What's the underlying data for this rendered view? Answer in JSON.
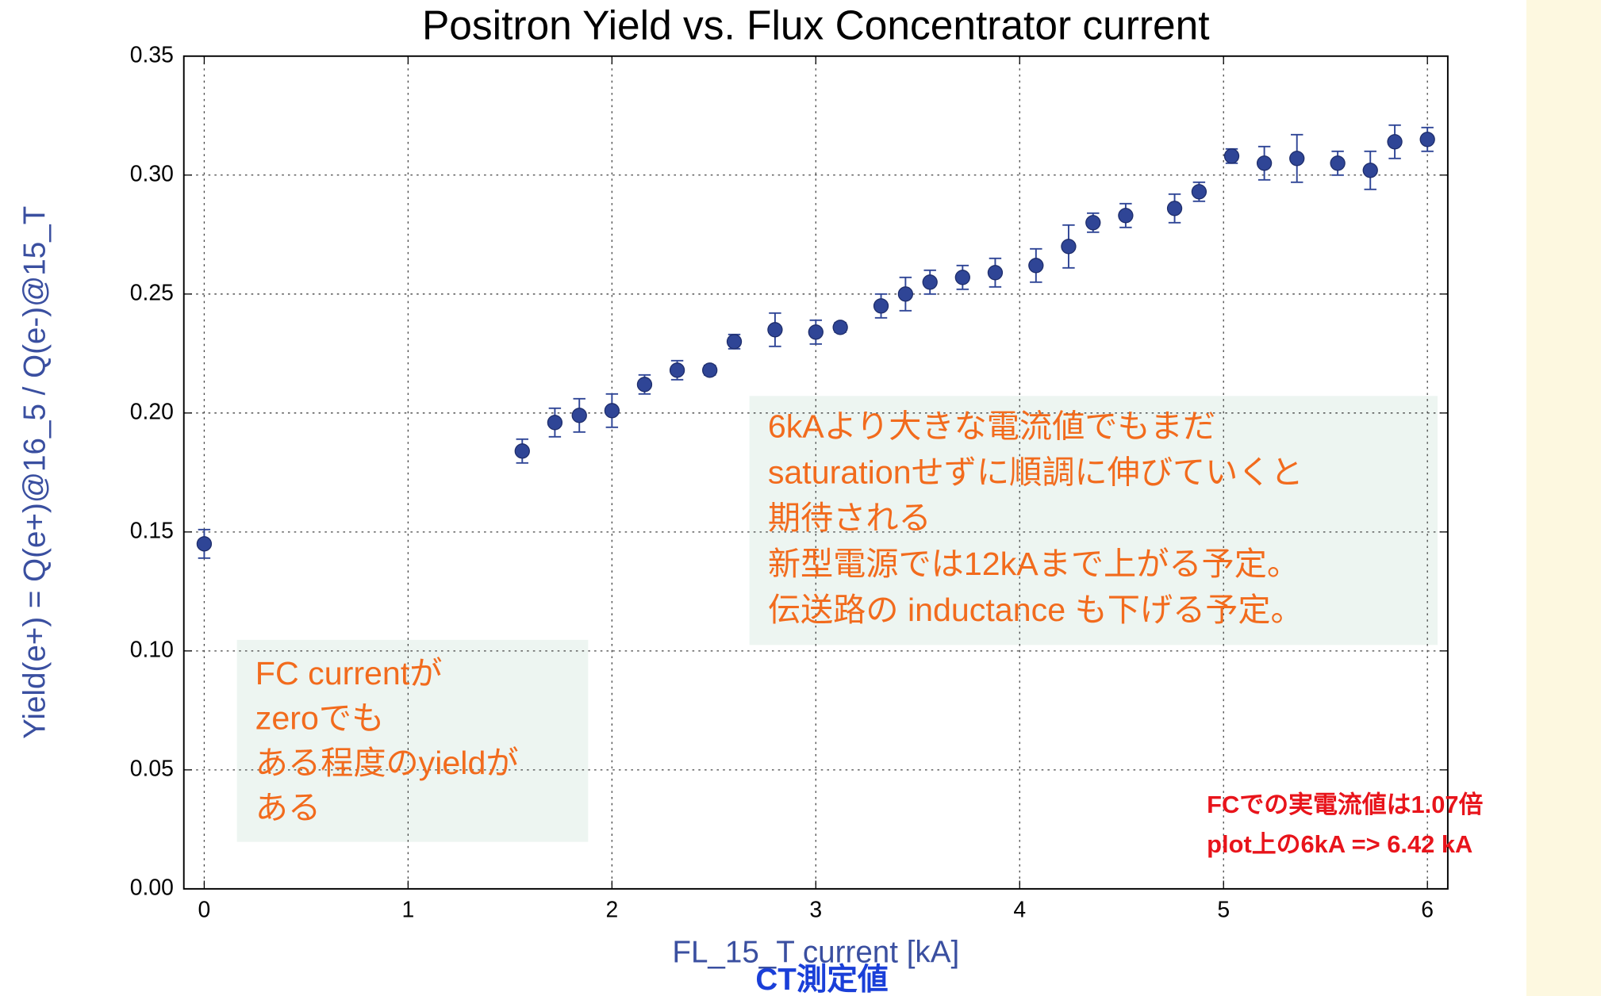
{
  "chart_data": {
    "type": "scatter",
    "title": "Positron Yield vs. Flux Concentrator current",
    "x_label": "FL_15_T current [kA]",
    "y_label": "Yield(e+) = Q(e+)@16_5 / Q(e-)@15_T",
    "x": [
      0,
      1.56,
      1.72,
      1.84,
      2.0,
      2.16,
      2.32,
      2.48,
      2.6,
      2.8,
      3.0,
      3.12,
      3.32,
      3.44,
      3.56,
      3.72,
      3.88,
      4.08,
      4.24,
      4.36,
      4.52,
      4.76,
      4.88,
      5.04,
      5.2,
      5.36,
      5.56,
      5.72,
      5.84,
      6.0
    ],
    "values": [
      0.145,
      0.184,
      0.196,
      0.199,
      0.201,
      0.212,
      0.218,
      0.218,
      0.23,
      0.235,
      0.234,
      0.236,
      0.245,
      0.25,
      0.255,
      0.257,
      0.259,
      0.262,
      0.27,
      0.28,
      0.283,
      0.286,
      0.293,
      0.308,
      0.305,
      0.307,
      0.305,
      0.302,
      0.314,
      0.315
    ],
    "errors": [
      0.006,
      0.005,
      0.006,
      0.007,
      0.007,
      0.004,
      0.004,
      0.002,
      0.003,
      0.007,
      0.005,
      0.002,
      0.005,
      0.007,
      0.005,
      0.005,
      0.006,
      0.007,
      0.009,
      0.004,
      0.005,
      0.006,
      0.004,
      0.003,
      0.007,
      0.01,
      0.005,
      0.008,
      0.007,
      0.005
    ],
    "color": "#2f4596",
    "xlim": [
      -0.1,
      6.1
    ],
    "ylim": [
      0,
      0.35
    ],
    "xticks": [
      0,
      1,
      2,
      3,
      4,
      5,
      6
    ],
    "yticks": [
      {
        "value": 0,
        "label": "0.00"
      },
      0.05,
      {
        "value": 0.1,
        "label": "0.10"
      },
      0.15,
      {
        "value": 0.2,
        "label": "0.20"
      },
      0.25,
      {
        "value": 0.3,
        "label": "0.30"
      },
      0.35
    ],
    "grid": true,
    "annotations": [
      {
        "lines": [
          "6kAより大きな電流値でもまだ",
          "saturationせずに順調に伸びていくと",
          "期待される",
          "新型電源では12kAまで上がる予定。",
          "伝送路の inductance も下げる予定。"
        ]
      },
      {
        "lines": [
          "FC currentが",
          "zeroでも",
          "ある程度のyieldが",
          "ある"
        ]
      },
      {
        "lines": [
          "FCでの実電流値は1.07倍",
          "plot上の6kA => 6.42 kA"
        ]
      },
      {
        "lines": [
          "CT測定値"
        ]
      }
    ]
  }
}
